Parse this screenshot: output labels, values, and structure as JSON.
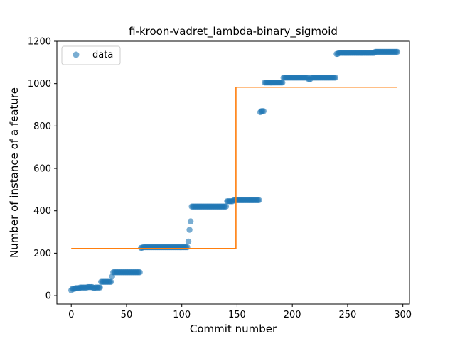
{
  "chart_data": {
    "type": "scatter",
    "title": "fi-kroon-vadret_lambda-binary_sigmoid",
    "xlabel": "Commit number",
    "ylabel": "Number of instance of a feature",
    "xlim": [
      -13,
      306
    ],
    "ylim": [
      -40,
      1200
    ],
    "xticks": [
      0,
      50,
      100,
      150,
      200,
      250,
      300
    ],
    "yticks": [
      0,
      200,
      400,
      600,
      800,
      1000,
      1200
    ],
    "legend": {
      "position": "top-left",
      "entries": [
        "data"
      ]
    },
    "colors": {
      "data": "#1f77b4",
      "fit": "#ff7f0e"
    },
    "series": [
      {
        "name": "data",
        "kind": "scatter",
        "segments": [
          {
            "x0": 0,
            "x1": 0,
            "y": 25
          },
          {
            "x0": 1,
            "x1": 3,
            "y": 32
          },
          {
            "x0": 4,
            "x1": 7,
            "y": 35
          },
          {
            "x0": 8,
            "x1": 14,
            "y": 38
          },
          {
            "x0": 15,
            "x1": 19,
            "y": 40
          },
          {
            "x0": 20,
            "x1": 21,
            "y": 36
          },
          {
            "x0": 22,
            "x1": 26,
            "y": 38
          },
          {
            "x0": 27,
            "x1": 36,
            "y": 65
          },
          {
            "x0": 37,
            "x1": 37,
            "y": 90
          },
          {
            "x0": 38,
            "x1": 62,
            "y": 110
          },
          {
            "x0": 63,
            "x1": 64,
            "y": 225
          },
          {
            "x0": 65,
            "x1": 105,
            "y": 228
          },
          {
            "x0": 106,
            "x1": 106,
            "y": 255
          },
          {
            "x0": 107,
            "x1": 107,
            "y": 310
          },
          {
            "x0": 108,
            "x1": 108,
            "y": 350
          },
          {
            "x0": 109,
            "x1": 140,
            "y": 420
          },
          {
            "x0": 141,
            "x1": 146,
            "y": 445
          },
          {
            "x0": 147,
            "x1": 170,
            "y": 450
          },
          {
            "x0": 171,
            "x1": 171,
            "y": 865
          },
          {
            "x0": 172,
            "x1": 174,
            "y": 870
          },
          {
            "x0": 175,
            "x1": 191,
            "y": 1005
          },
          {
            "x0": 192,
            "x1": 214,
            "y": 1028
          },
          {
            "x0": 215,
            "x1": 216,
            "y": 1020
          },
          {
            "x0": 217,
            "x1": 239,
            "y": 1028
          },
          {
            "x0": 240,
            "x1": 241,
            "y": 1140
          },
          {
            "x0": 242,
            "x1": 274,
            "y": 1145
          },
          {
            "x0": 275,
            "x1": 295,
            "y": 1150
          }
        ]
      },
      {
        "kind": "line",
        "points": [
          [
            0,
            222
          ],
          [
            149,
            222
          ],
          [
            149,
            983
          ],
          [
            295,
            983
          ]
        ]
      }
    ]
  }
}
